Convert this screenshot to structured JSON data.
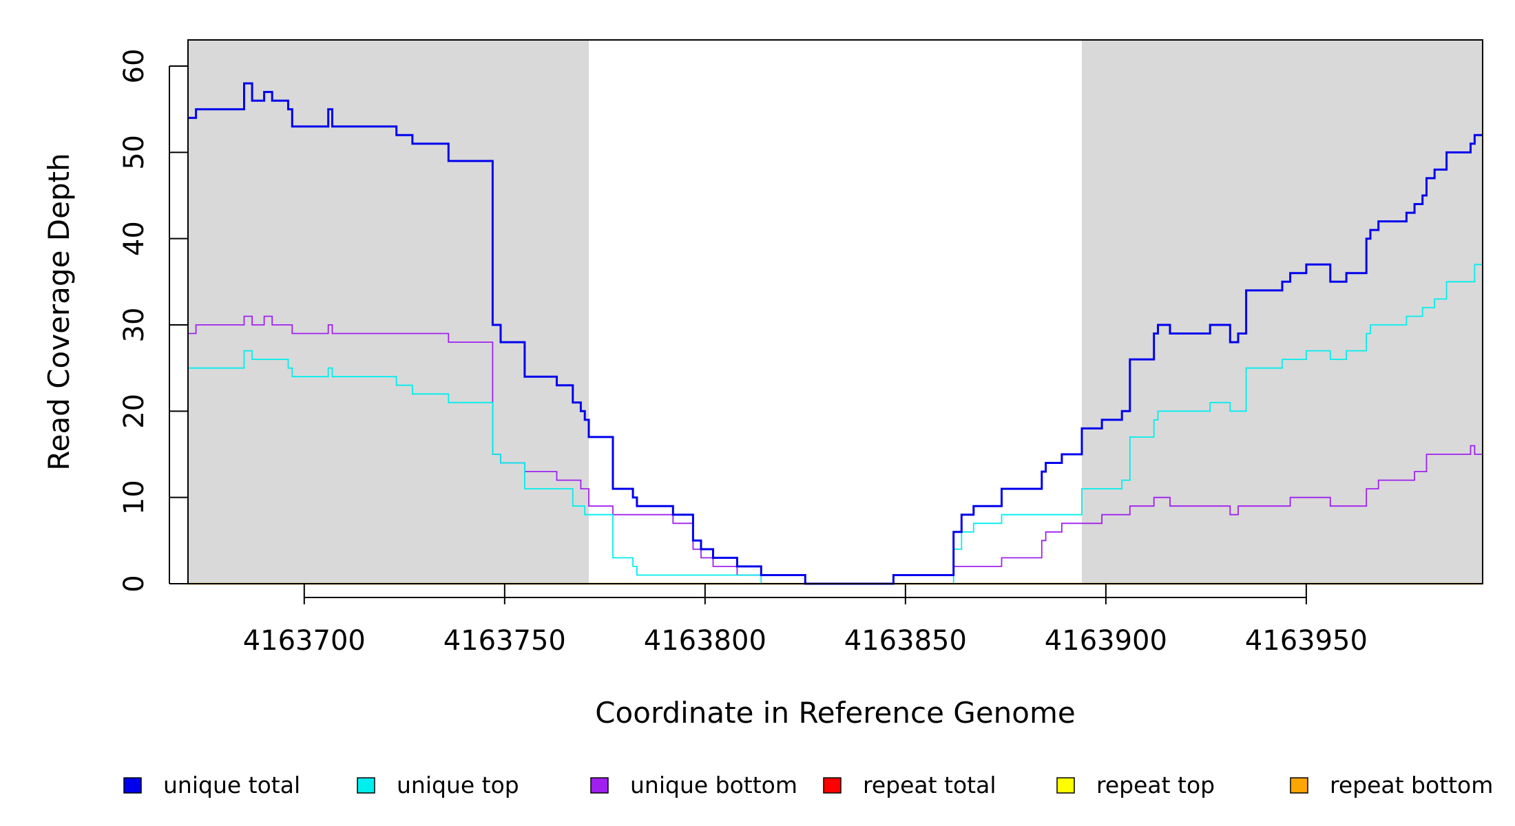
{
  "chart_data": {
    "type": "line",
    "step": true,
    "xlabel": "Coordinate in Reference Genome",
    "ylabel": "Read Coverage Depth",
    "xlim": [
      4163671,
      4163994
    ],
    "ylim": [
      0,
      63
    ],
    "x_ticks": [
      4163700,
      4163750,
      4163800,
      4163850,
      4163900,
      4163950
    ],
    "y_ticks": [
      0,
      10,
      20,
      30,
      40,
      50,
      60
    ],
    "shaded_regions": [
      {
        "x_start": 4163671,
        "x_end": 4163771,
        "color": "#d9d9d9"
      },
      {
        "x_start": 4163894,
        "x_end": 4163994,
        "color": "#d9d9d9"
      }
    ],
    "series": [
      {
        "name": "unique total",
        "color": "#0000ee",
        "width": 3,
        "points": [
          [
            4163671,
            54
          ],
          [
            4163673,
            55
          ],
          [
            4163685,
            58
          ],
          [
            4163687,
            56
          ],
          [
            4163690,
            57
          ],
          [
            4163692,
            56
          ],
          [
            4163696,
            55
          ],
          [
            4163697,
            53
          ],
          [
            4163706,
            55
          ],
          [
            4163707,
            53
          ],
          [
            4163723,
            52
          ],
          [
            4163727,
            51
          ],
          [
            4163736,
            49
          ],
          [
            4163747,
            30
          ],
          [
            4163749,
            28
          ],
          [
            4163755,
            24
          ],
          [
            4163763,
            23
          ],
          [
            4163767,
            21
          ],
          [
            4163769,
            20
          ],
          [
            4163770,
            19
          ],
          [
            4163771,
            17
          ],
          [
            4163777,
            11
          ],
          [
            4163782,
            10
          ],
          [
            4163783,
            9
          ],
          [
            4163792,
            8
          ],
          [
            4163797,
            5
          ],
          [
            4163799,
            4
          ],
          [
            4163802,
            3
          ],
          [
            4163808,
            2
          ],
          [
            4163814,
            1
          ],
          [
            4163825,
            0
          ],
          [
            4163847,
            1
          ],
          [
            4163862,
            6
          ],
          [
            4163864,
            8
          ],
          [
            4163867,
            9
          ],
          [
            4163874,
            11
          ],
          [
            4163884,
            13
          ],
          [
            4163885,
            14
          ],
          [
            4163889,
            15
          ],
          [
            4163894,
            18
          ],
          [
            4163899,
            19
          ],
          [
            4163904,
            20
          ],
          [
            4163906,
            26
          ],
          [
            4163912,
            29
          ],
          [
            4163913,
            30
          ],
          [
            4163916,
            29
          ],
          [
            4163926,
            30
          ],
          [
            4163931,
            28
          ],
          [
            4163933,
            29
          ],
          [
            4163935,
            34
          ],
          [
            4163944,
            35
          ],
          [
            4163946,
            36
          ],
          [
            4163950,
            37
          ],
          [
            4163956,
            35
          ],
          [
            4163960,
            36
          ],
          [
            4163965,
            40
          ],
          [
            4163966,
            41
          ],
          [
            4163968,
            42
          ],
          [
            4163975,
            43
          ],
          [
            4163977,
            44
          ],
          [
            4163979,
            45
          ],
          [
            4163980,
            47
          ],
          [
            4163982,
            48
          ],
          [
            4163985,
            50
          ],
          [
            4163991,
            51
          ],
          [
            4163992,
            52
          ],
          [
            4163994,
            52
          ]
        ]
      },
      {
        "name": "unique top",
        "color": "#00eeee",
        "width": 1.8,
        "points": [
          [
            4163671,
            25
          ],
          [
            4163685,
            27
          ],
          [
            4163687,
            26
          ],
          [
            4163696,
            25
          ],
          [
            4163697,
            24
          ],
          [
            4163706,
            25
          ],
          [
            4163707,
            24
          ],
          [
            4163723,
            23
          ],
          [
            4163727,
            22
          ],
          [
            4163736,
            21
          ],
          [
            4163747,
            15
          ],
          [
            4163749,
            14
          ],
          [
            4163755,
            11
          ],
          [
            4163767,
            9
          ],
          [
            4163770,
            8
          ],
          [
            4163777,
            3
          ],
          [
            4163782,
            2
          ],
          [
            4163783,
            1
          ],
          [
            4163814,
            0
          ],
          [
            4163862,
            4
          ],
          [
            4163864,
            6
          ],
          [
            4163867,
            7
          ],
          [
            4163874,
            8
          ],
          [
            4163894,
            11
          ],
          [
            4163904,
            12
          ],
          [
            4163906,
            17
          ],
          [
            4163912,
            19
          ],
          [
            4163913,
            20
          ],
          [
            4163926,
            21
          ],
          [
            4163931,
            20
          ],
          [
            4163935,
            25
          ],
          [
            4163944,
            26
          ],
          [
            4163950,
            27
          ],
          [
            4163956,
            26
          ],
          [
            4163960,
            27
          ],
          [
            4163965,
            29
          ],
          [
            4163966,
            30
          ],
          [
            4163975,
            31
          ],
          [
            4163979,
            32
          ],
          [
            4163982,
            33
          ],
          [
            4163985,
            35
          ],
          [
            4163992,
            37
          ],
          [
            4163994,
            37
          ]
        ]
      },
      {
        "name": "unique bottom",
        "color": "#a020f0",
        "width": 1.8,
        "points": [
          [
            4163671,
            29
          ],
          [
            4163673,
            30
          ],
          [
            4163685,
            31
          ],
          [
            4163687,
            30
          ],
          [
            4163690,
            31
          ],
          [
            4163692,
            30
          ],
          [
            4163697,
            29
          ],
          [
            4163706,
            30
          ],
          [
            4163707,
            29
          ],
          [
            4163736,
            28
          ],
          [
            4163747,
            15
          ],
          [
            4163749,
            14
          ],
          [
            4163755,
            13
          ],
          [
            4163763,
            12
          ],
          [
            4163769,
            11
          ],
          [
            4163771,
            9
          ],
          [
            4163777,
            8
          ],
          [
            4163792,
            7
          ],
          [
            4163797,
            4
          ],
          [
            4163799,
            3
          ],
          [
            4163802,
            2
          ],
          [
            4163808,
            1
          ],
          [
            4163825,
            0
          ],
          [
            4163847,
            1
          ],
          [
            4163862,
            2
          ],
          [
            4163874,
            3
          ],
          [
            4163884,
            5
          ],
          [
            4163885,
            6
          ],
          [
            4163889,
            7
          ],
          [
            4163899,
            8
          ],
          [
            4163906,
            9
          ],
          [
            4163912,
            10
          ],
          [
            4163916,
            9
          ],
          [
            4163931,
            8
          ],
          [
            4163933,
            9
          ],
          [
            4163946,
            10
          ],
          [
            4163956,
            9
          ],
          [
            4163965,
            11
          ],
          [
            4163968,
            12
          ],
          [
            4163977,
            13
          ],
          [
            4163980,
            15
          ],
          [
            4163991,
            16
          ],
          [
            4163992,
            15
          ],
          [
            4163994,
            15
          ]
        ]
      },
      {
        "name": "repeat total",
        "color": "#ff0000",
        "width": 1.5,
        "points": [
          [
            4163671,
            0
          ],
          [
            4163994,
            0
          ]
        ]
      },
      {
        "name": "repeat top",
        "color": "#ffff00",
        "width": 1.5,
        "points": [
          [
            4163671,
            0
          ],
          [
            4163994,
            0
          ]
        ]
      },
      {
        "name": "repeat bottom",
        "color": "#ffa500",
        "width": 2.5,
        "points": [
          [
            4163671,
            0
          ],
          [
            4163994,
            0
          ]
        ]
      }
    ],
    "legend": {
      "placement": "bottom",
      "entries": [
        {
          "label": "unique total",
          "color": "#0000ee"
        },
        {
          "label": "unique top",
          "color": "#00eeee"
        },
        {
          "label": "unique bottom",
          "color": "#a020f0"
        },
        {
          "label": "repeat total",
          "color": "#ff0000"
        },
        {
          "label": "repeat top",
          "color": "#ffff00"
        },
        {
          "label": "repeat bottom",
          "color": "#ffa500"
        }
      ]
    }
  }
}
